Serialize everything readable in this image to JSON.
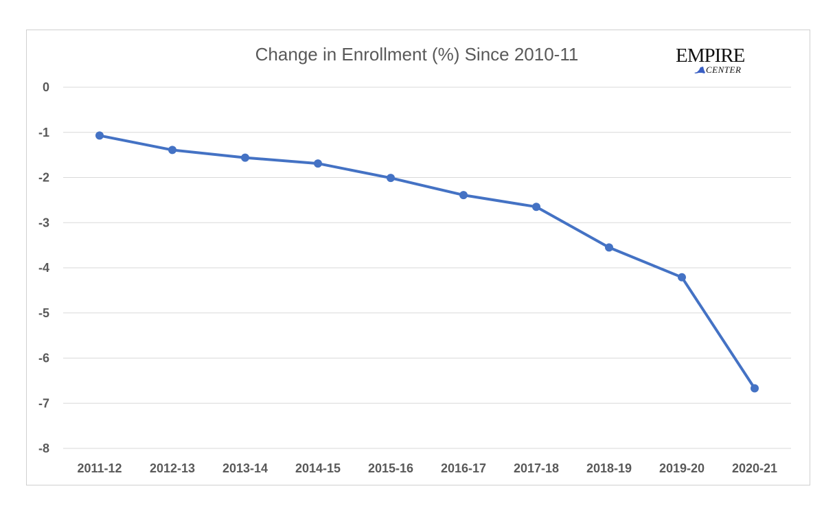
{
  "chart_data": {
    "type": "line",
    "title": "Change in Enrollment (%) Since 2010-11",
    "xlabel": "",
    "ylabel": "",
    "categories": [
      "2011-12",
      "2012-13",
      "2013-14",
      "2014-15",
      "2015-16",
      "2016-17",
      "2017-18",
      "2018-19",
      "2019-20",
      "2020-21"
    ],
    "series": [
      {
        "values": [
          -1.07,
          -1.39,
          -1.56,
          -1.69,
          -2.01,
          -2.39,
          -2.65,
          -3.55,
          -4.21,
          -6.67
        ]
      }
    ],
    "ylim": [
      -8,
      0
    ],
    "yticks": [
      "0",
      "-1",
      "-2",
      "-3",
      "-4",
      "-5",
      "-6",
      "-7",
      "-8"
    ],
    "grid": true,
    "legend": "none",
    "line_color": "#4472c4",
    "grid_color": "#d9d9d9"
  },
  "logo": {
    "wordmark": "EMPIRE",
    "subtitle": "CENTER",
    "color": "#111111",
    "state_color": "#3a5fc4"
  }
}
